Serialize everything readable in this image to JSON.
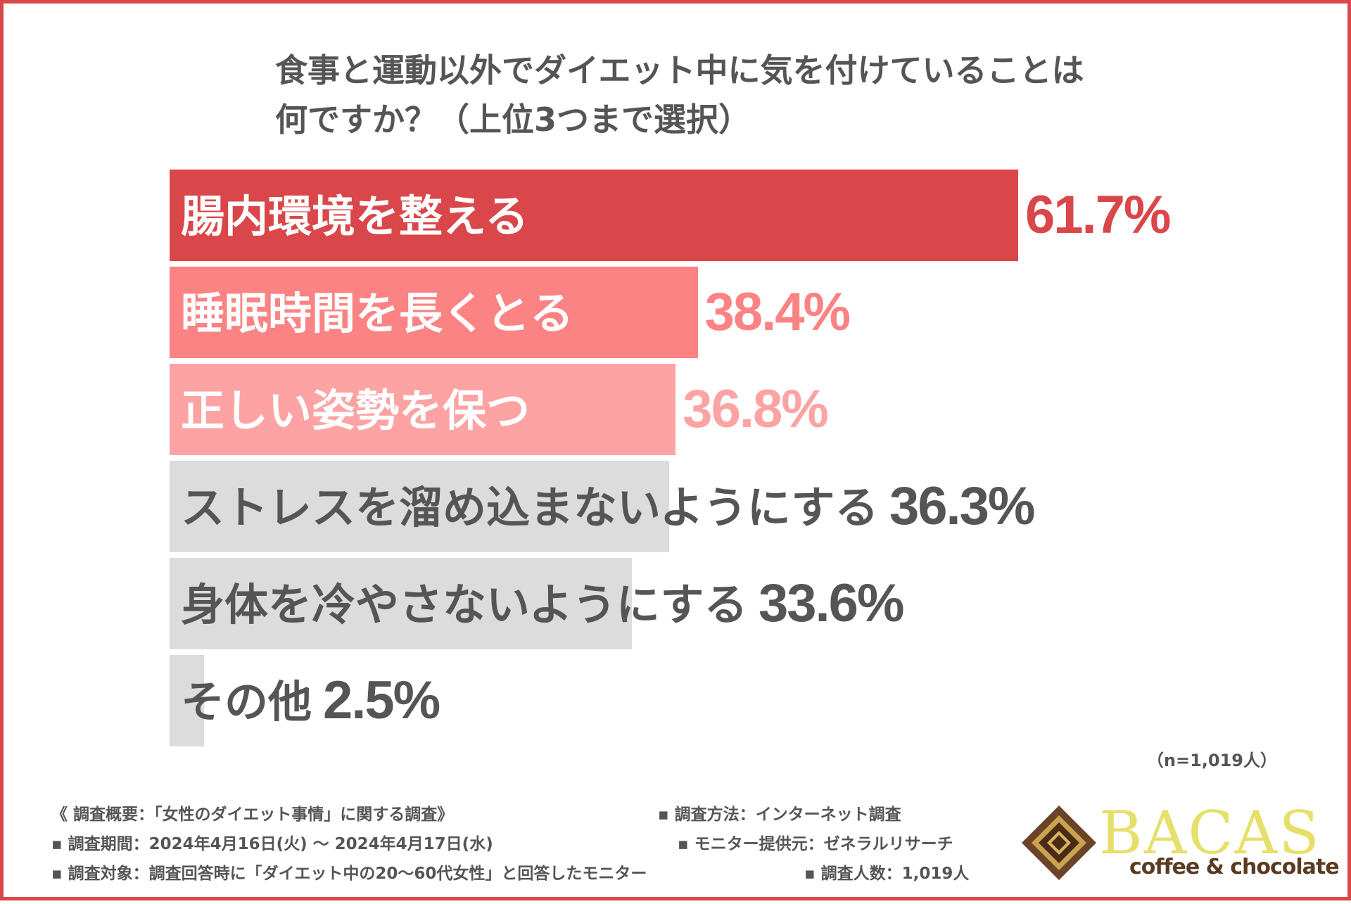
{
  "title": {
    "line1": "食事と運動以外でダイエット中に気を付けていることは",
    "line2": "何ですか？（上位3つまで選択）"
  },
  "sample_size": "（n=1,019人）",
  "colors": {
    "frame": "#d9474a",
    "top1": "#d9474a",
    "top2": "#fb8383",
    "top3": "#fda3a3",
    "other": "#dcdcdc",
    "other_text": "#555555"
  },
  "chart_data": {
    "type": "bar",
    "orientation": "horizontal",
    "title": "食事と運動以外でダイエット中に気を付けていることは何ですか？（上位3つまで選択）",
    "categories": [
      "腸内環境を整える",
      "睡眠時間を長くとる",
      "正しい姿勢を保つ",
      "ストレスを溜め込まないようにする",
      "身体を冷やさないようにする",
      "その他"
    ],
    "values": [
      61.7,
      38.4,
      36.8,
      36.3,
      33.6,
      2.5
    ],
    "value_labels": [
      "61.7%",
      "38.4%",
      "36.8%",
      "36.3%",
      "33.6%",
      "2.5%"
    ],
    "unit": "%",
    "xlim": [
      0,
      100
    ],
    "grid": false,
    "legend": "none"
  },
  "footer": {
    "overview": "《 調査概要：「女性のダイエット事情」に関する調査》",
    "period": "▪ 調査期間：2024年4月16日(火) ～ 2024年4月17日(水)",
    "target": "▪ 調査対象：調査回答時に「ダイエット中の20～60代女性」と回答したモニター",
    "method": "▪ 調査方法：インターネット調査",
    "provider": "▪ モニター提供元：ゼネラルリサーチ",
    "count": "▪ 調査人数：1,019人"
  },
  "logo": {
    "name": "BACAS",
    "tagline": "coffee & chocolate"
  }
}
